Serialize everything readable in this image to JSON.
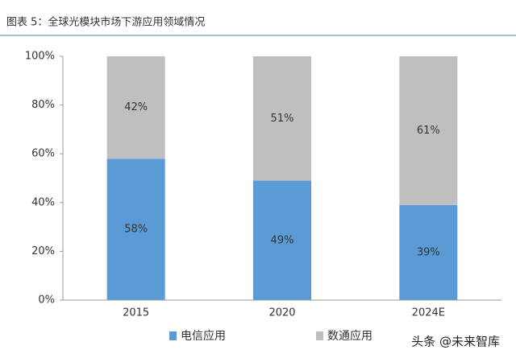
{
  "chart_data": {
    "type": "stacked_bar",
    "title": "图表 5：全球光模块市场下游应用领域情况",
    "categories": [
      "2015",
      "2020",
      "2024E"
    ],
    "series": [
      {
        "name": "电信应用",
        "color": "#5b9bd5",
        "values": [
          58,
          49,
          39
        ],
        "value_labels": [
          "58%",
          "49%",
          "39%"
        ]
      },
      {
        "name": "数通应用",
        "color": "#bfbfbf",
        "values": [
          42,
          51,
          61
        ],
        "value_labels": [
          "42%",
          "51%",
          "61%"
        ]
      }
    ],
    "ylim": [
      0,
      100
    ],
    "yticks": [
      {
        "value": 0,
        "label": "0%"
      },
      {
        "value": 20,
        "label": "20%"
      },
      {
        "value": 40,
        "label": "40%"
      },
      {
        "value": 60,
        "label": "60%"
      },
      {
        "value": 80,
        "label": "80%"
      },
      {
        "value": 100,
        "label": "100%"
      }
    ],
    "legend": "bottom",
    "watermark": "头条 @未来智库"
  }
}
